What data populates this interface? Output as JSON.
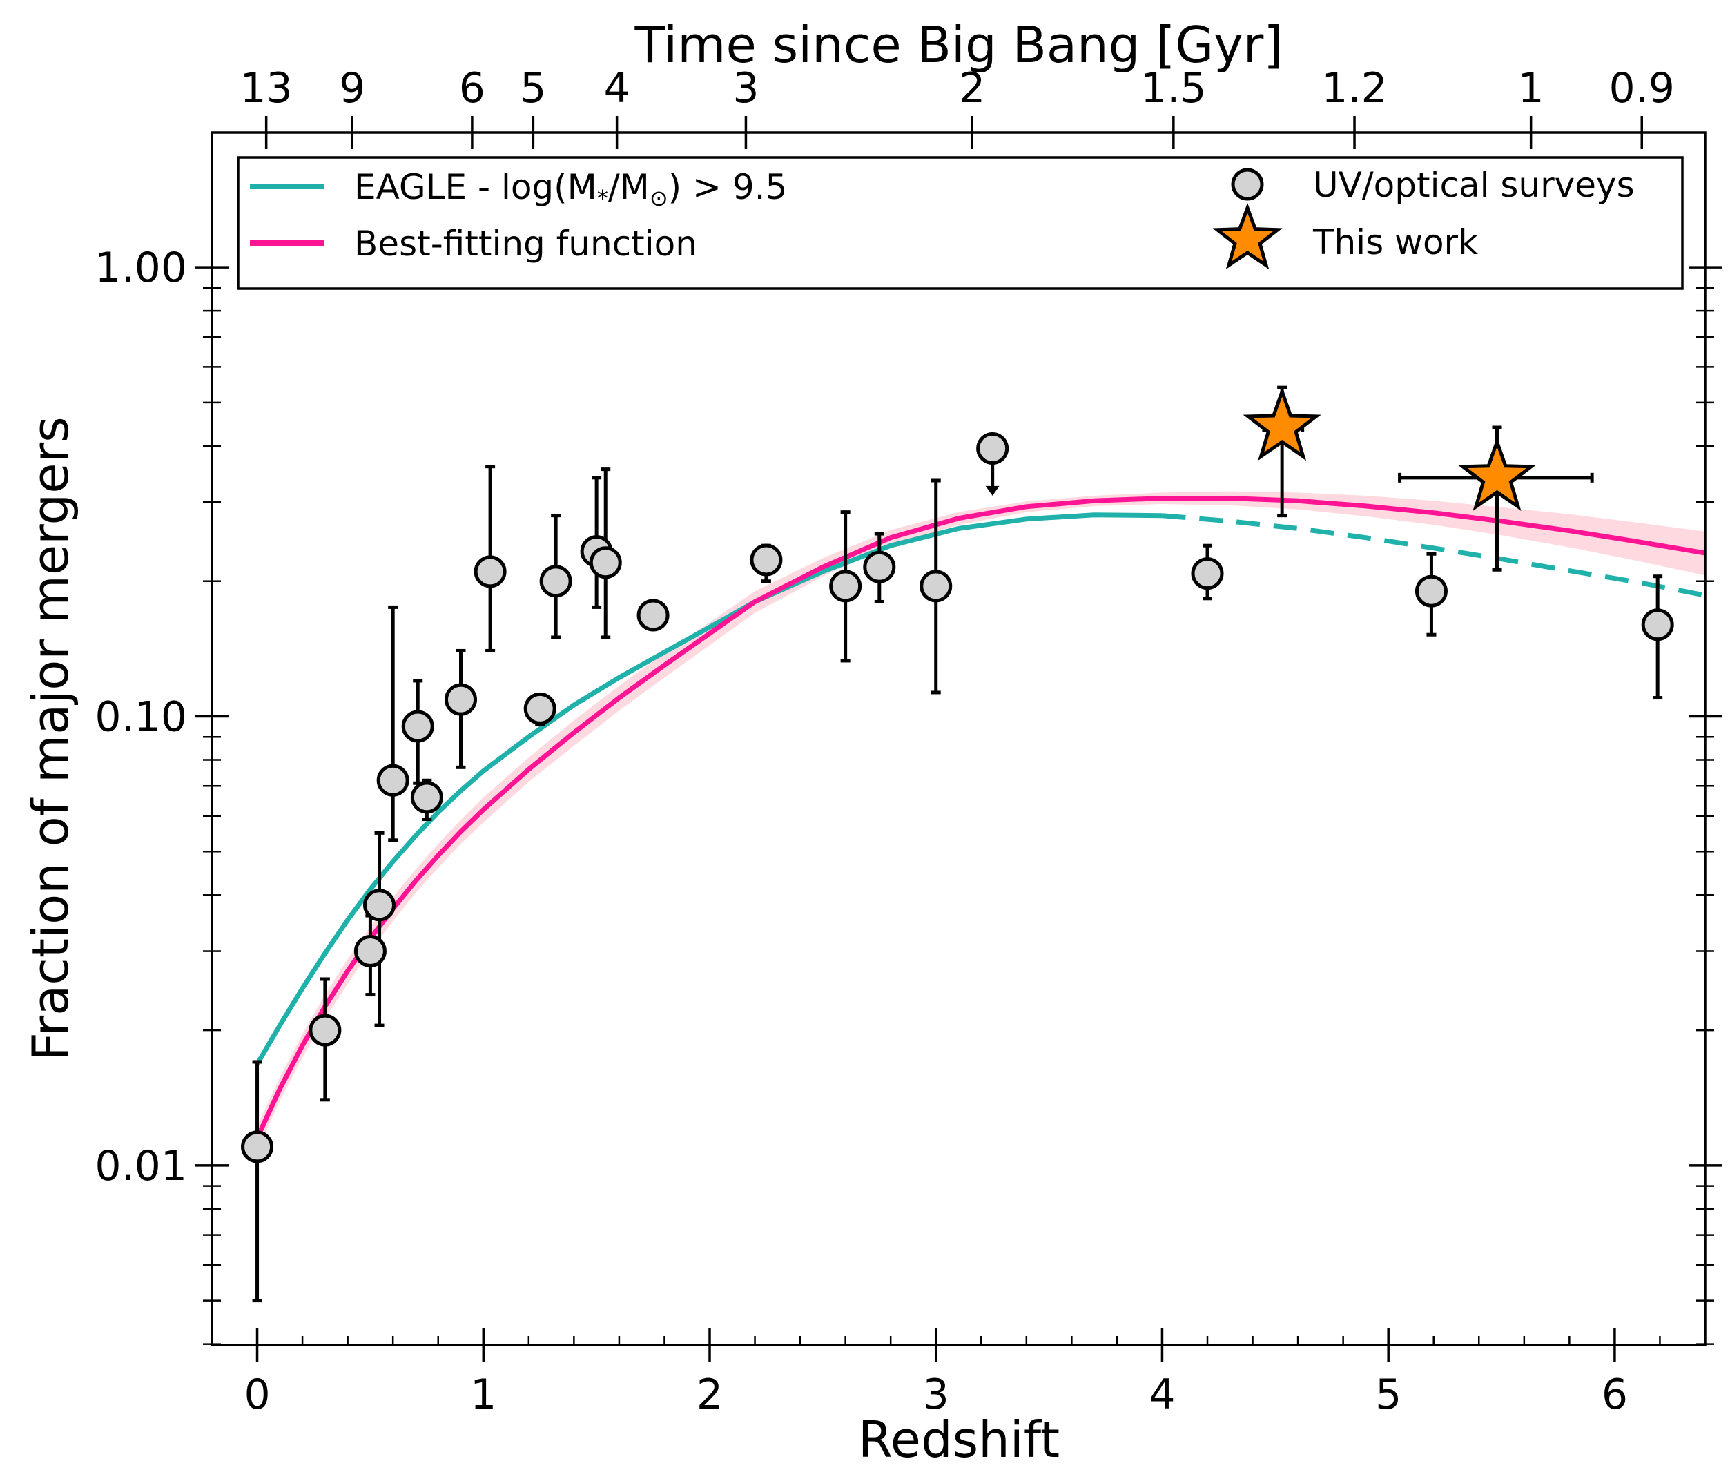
{
  "chart_data": {
    "type": "scatter",
    "xlabel": "Redshift",
    "ylabel": "Fraction of major mergers",
    "top_xlabel": "Time since Big Bang [Gyr]",
    "xlim": [
      -0.2,
      6.4
    ],
    "ylim_log10": [
      -2.4,
      0.3
    ],
    "x_ticks": [
      0,
      1,
      2,
      3,
      4,
      5,
      6
    ],
    "x_tick_labels": [
      "0",
      "1",
      "2",
      "3",
      "4",
      "5",
      "6"
    ],
    "y_ticks": [
      0.01,
      0.1,
      1.0
    ],
    "y_tick_labels": [
      "0.01",
      "0.10",
      "1.00"
    ],
    "top_ticks": [
      {
        "z": 0.04,
        "label": "13"
      },
      {
        "z": 0.42,
        "label": "9"
      },
      {
        "z": 0.95,
        "label": "6"
      },
      {
        "z": 1.22,
        "label": "5"
      },
      {
        "z": 1.59,
        "label": "4"
      },
      {
        "z": 2.16,
        "label": "3"
      },
      {
        "z": 3.16,
        "label": "2"
      },
      {
        "z": 4.05,
        "label": "1.5"
      },
      {
        "z": 4.85,
        "label": "1.2"
      },
      {
        "z": 5.63,
        "label": "1"
      },
      {
        "z": 6.12,
        "label": "0.9"
      }
    ],
    "legend": {
      "eagle": "EAGLE - log(M",
      "eagle_sub": "*",
      "eagle_mid": "/M",
      "eagle_sun": "⊙",
      "eagle_tail": ") > 9.5",
      "best_fit": "Best-fitting function",
      "uv": "UV/optical surveys",
      "this_work": "This work"
    },
    "colors": {
      "eagle": "#20b2aa",
      "best_fit": "#ff1493",
      "band": "#ffc0cb",
      "survey_fill": "#d3d3d3",
      "star_fill": "#ff8c00"
    },
    "series": [
      {
        "name": "UV/optical surveys",
        "points": [
          {
            "z": 0.0,
            "f": 0.011,
            "lo": 0.005,
            "hi": 0.017
          },
          {
            "z": 0.3,
            "f": 0.02,
            "lo": 0.014,
            "hi": 0.026
          },
          {
            "z": 0.5,
            "f": 0.03,
            "lo": 0.024,
            "hi": 0.036
          },
          {
            "z": 0.54,
            "f": 0.038,
            "lo": 0.0205,
            "hi": 0.055
          },
          {
            "z": 0.6,
            "f": 0.072,
            "lo": 0.053,
            "hi": 0.175
          },
          {
            "z": 0.71,
            "f": 0.095,
            "lo": 0.071,
            "hi": 0.12
          },
          {
            "z": 0.75,
            "f": 0.066,
            "lo": 0.059,
            "hi": 0.072
          },
          {
            "z": 0.9,
            "f": 0.109,
            "lo": 0.077,
            "hi": 0.14
          },
          {
            "z": 1.03,
            "f": 0.21,
            "lo": 0.14,
            "hi": 0.36
          },
          {
            "z": 1.25,
            "f": 0.104,
            "lo": 0.096,
            "hi": 0.11
          },
          {
            "z": 1.32,
            "f": 0.2,
            "lo": 0.15,
            "hi": 0.28
          },
          {
            "z": 1.5,
            "f": 0.233,
            "lo": 0.175,
            "hi": 0.34
          },
          {
            "z": 1.54,
            "f": 0.22,
            "lo": 0.15,
            "hi": 0.355
          },
          {
            "z": 1.75,
            "f": 0.168,
            "lo": 0.168,
            "hi": 0.168
          },
          {
            "z": 2.25,
            "f": 0.223,
            "lo": 0.2,
            "hi": 0.24
          },
          {
            "z": 2.6,
            "f": 0.195,
            "lo": 0.133,
            "hi": 0.285
          },
          {
            "z": 2.75,
            "f": 0.215,
            "lo": 0.18,
            "hi": 0.255
          },
          {
            "z": 3.0,
            "f": 0.195,
            "lo": 0.113,
            "hi": 0.335
          },
          {
            "z": 4.2,
            "f": 0.208,
            "lo": 0.183,
            "hi": 0.24
          },
          {
            "z": 5.19,
            "f": 0.19,
            "lo": 0.152,
            "hi": 0.23
          },
          {
            "z": 6.19,
            "f": 0.16,
            "lo": 0.11,
            "hi": 0.205
          }
        ],
        "upper_limits": [
          {
            "z": 3.25,
            "f": 0.395,
            "to": 0.31
          }
        ]
      },
      {
        "name": "This work",
        "points": [
          {
            "z": 4.53,
            "f": 0.44,
            "lo": 0.28,
            "hi": 0.54,
            "xlo": 4.45,
            "xhi": 4.62
          },
          {
            "z": 5.48,
            "f": 0.34,
            "lo": 0.212,
            "hi": 0.44,
            "xlo": 5.05,
            "xhi": 5.9
          }
        ]
      }
    ],
    "eagle_curve": {
      "z": [
        0.0,
        0.1,
        0.2,
        0.3,
        0.4,
        0.5,
        0.6,
        0.7,
        0.8,
        0.9,
        1.0,
        1.2,
        1.4,
        1.6,
        1.8,
        2.0,
        2.2,
        2.5,
        2.8,
        3.1,
        3.4,
        3.7,
        4.0,
        4.3,
        4.6,
        4.9,
        5.2,
        5.5,
        5.8,
        6.1,
        6.4
      ],
      "f": [
        0.0168,
        0.0205,
        0.0248,
        0.0297,
        0.0352,
        0.0412,
        0.0475,
        0.0542,
        0.0612,
        0.0683,
        0.0756,
        0.09,
        0.106,
        0.122,
        0.139,
        0.158,
        0.18,
        0.21,
        0.24,
        0.262,
        0.275,
        0.281,
        0.28,
        0.272,
        0.262,
        0.25,
        0.237,
        0.224,
        0.211,
        0.199,
        0.186
      ],
      "solid_until_z": 4.0
    },
    "best_fit_curve": {
      "z": [
        0.0,
        0.1,
        0.2,
        0.3,
        0.4,
        0.5,
        0.6,
        0.7,
        0.8,
        0.9,
        1.0,
        1.2,
        1.4,
        1.6,
        1.8,
        2.0,
        2.2,
        2.5,
        2.8,
        3.1,
        3.4,
        3.7,
        4.0,
        4.3,
        4.6,
        4.9,
        5.2,
        5.5,
        5.8,
        6.1,
        6.4
      ],
      "f": [
        0.0115,
        0.0148,
        0.0185,
        0.0226,
        0.0271,
        0.032,
        0.0373,
        0.043,
        0.049,
        0.0554,
        0.062,
        0.0762,
        0.092,
        0.11,
        0.13,
        0.153,
        0.18,
        0.215,
        0.25,
        0.276,
        0.293,
        0.302,
        0.306,
        0.306,
        0.302,
        0.294,
        0.284,
        0.272,
        0.259,
        0.245,
        0.231
      ],
      "band_lo": [
        0.0108,
        0.0139,
        0.0174,
        0.0212,
        0.0254,
        0.03,
        0.035,
        0.0404,
        0.046,
        0.052,
        0.058,
        0.0715,
        0.086,
        0.103,
        0.122,
        0.144,
        0.17,
        0.205,
        0.24,
        0.267,
        0.285,
        0.294,
        0.297,
        0.295,
        0.289,
        0.279,
        0.267,
        0.253,
        0.238,
        0.222,
        0.206
      ],
      "band_hi": [
        0.0122,
        0.0157,
        0.0196,
        0.024,
        0.0288,
        0.034,
        0.0396,
        0.0456,
        0.052,
        0.0588,
        0.066,
        0.0809,
        0.098,
        0.117,
        0.138,
        0.162,
        0.19,
        0.225,
        0.26,
        0.285,
        0.301,
        0.31,
        0.315,
        0.317,
        0.315,
        0.31,
        0.302,
        0.292,
        0.282,
        0.27,
        0.258
      ]
    }
  }
}
